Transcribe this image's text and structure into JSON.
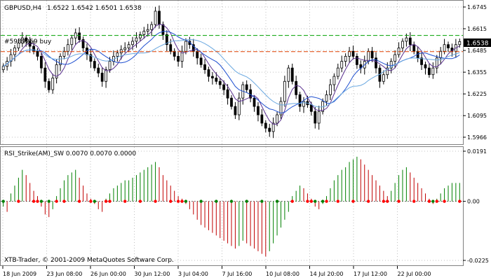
{
  "window": {
    "symbol_label": "GBPUSD,H4",
    "ohlc_label": "1.6522 1.6542 1.6501 1.6538",
    "order_label": "#5989259 buy",
    "current_price": "1.6538",
    "copyright": "XTB-Trader, © 2001-2009 MetaQuotes Software Corp."
  },
  "colors": {
    "background": "#ffffff",
    "candle": "#000000",
    "grid": "#c0c0c0",
    "order_line": "#00a000",
    "stop_line": "#e04000",
    "ma_fast": "#1e4fd0",
    "ma_slow": "#6aa8e0",
    "ma_mid": "#5a3090",
    "hist_pos": "#008000",
    "hist_neg": "#c00000",
    "dot_pos": "#ff0000",
    "dot_neg": "#008000",
    "price_tag_bg": "#000000",
    "price_tag_fg": "#ffffff"
  },
  "chart_data": [
    {
      "type": "candlestick",
      "title": "GBPUSD,H4",
      "ylim": [
        1.5966,
        1.6745
      ],
      "y_ticks": [
        "1.6745",
        "1.6615",
        "1.6485",
        "1.6355",
        "1.6225",
        "1.6095",
        "1.5966"
      ],
      "order_level": 1.6575,
      "stop_level": 1.6478,
      "current_price": 1.6538,
      "close": [
        1.639,
        1.642,
        1.646,
        1.65,
        1.653,
        1.656,
        1.654,
        1.651,
        1.648,
        1.645,
        1.638,
        1.63,
        1.625,
        1.632,
        1.64,
        1.645,
        1.648,
        1.652,
        1.656,
        1.659,
        1.655,
        1.65,
        1.646,
        1.642,
        1.638,
        1.635,
        1.63,
        1.637,
        1.642,
        1.645,
        1.647,
        1.649,
        1.65,
        1.652,
        1.654,
        1.656,
        1.658,
        1.66,
        1.661,
        1.664,
        1.672,
        1.664,
        1.658,
        1.652,
        1.648,
        1.645,
        1.642,
        1.648,
        1.654,
        1.652,
        1.648,
        1.644,
        1.64,
        1.637,
        1.633,
        1.632,
        1.63,
        1.628,
        1.625,
        1.62,
        1.615,
        1.61,
        1.62,
        1.628,
        1.625,
        1.62,
        1.615,
        1.61,
        1.605,
        1.602,
        1.6,
        1.605,
        1.61,
        1.618,
        1.63,
        1.638,
        1.63,
        1.622,
        1.615,
        1.618,
        1.616,
        1.612,
        1.605,
        1.612,
        1.618,
        1.622,
        1.628,
        1.633,
        1.638,
        1.642,
        1.645,
        1.648,
        1.645,
        1.64,
        1.638,
        1.642,
        1.648,
        1.644,
        1.638,
        1.63,
        1.634,
        1.638,
        1.642,
        1.646,
        1.65,
        1.654,
        1.656,
        1.652,
        1.648,
        1.644,
        1.64,
        1.638,
        1.634,
        1.638,
        1.644,
        1.648,
        1.652,
        1.65,
        1.648,
        1.652,
        1.6538
      ]
    },
    {
      "type": "bar",
      "title": "RSI_Strike(AM)_SW 0.0070 0.0070 0.0000",
      "ylim": [
        -0.0225,
        0.0191
      ],
      "y_ticks": [
        "0.0191",
        "0.00",
        "-0.0225"
      ],
      "values": [
        -0.002,
        -0.004,
        0.003,
        0.006,
        0.009,
        0.012,
        0.01,
        0.007,
        0.004,
        0.002,
        -0.002,
        -0.005,
        -0.006,
        -0.003,
        0.002,
        0.005,
        0.008,
        0.01,
        0.011,
        0.012,
        0.009,
        0.006,
        0.003,
        0.001,
        -0.001,
        -0.003,
        -0.004,
        0.001,
        0.003,
        0.005,
        0.006,
        0.007,
        0.008,
        0.008,
        0.009,
        0.01,
        0.011,
        0.012,
        0.013,
        0.014,
        0.015,
        0.013,
        0.01,
        0.008,
        0.006,
        0.004,
        0.002,
        0.001,
        -0.001,
        -0.003,
        -0.005,
        -0.007,
        -0.009,
        -0.01,
        -0.011,
        -0.012,
        -0.013,
        -0.014,
        -0.015,
        -0.016,
        -0.017,
        -0.018,
        -0.017,
        -0.015,
        -0.016,
        -0.017,
        -0.018,
        -0.019,
        -0.02,
        -0.021,
        -0.019,
        -0.016,
        -0.013,
        -0.01,
        -0.007,
        -0.004,
        0.002,
        0.004,
        0.006,
        0.005,
        0.003,
        0.001,
        -0.002,
        -0.003,
        -0.001,
        0.002,
        0.005,
        0.008,
        0.01,
        0.012,
        0.013,
        0.015,
        0.016,
        0.017,
        0.016,
        0.014,
        0.012,
        0.01,
        0.008,
        0.006,
        0.004,
        0.002,
        0.004,
        0.007,
        0.01,
        0.012,
        0.013,
        0.011,
        0.009,
        0.007,
        0.005,
        0.003,
        0.001,
        -0.001,
        0.001,
        0.003,
        0.005,
        0.006,
        0.007,
        0.007,
        0.007
      ]
    }
  ],
  "x_ticks": [
    "18 Jun 2009",
    "23 Jun 08:00",
    "26 Jun 00:00",
    "30 Jun 12:00",
    "3 Jul 04:00",
    "7 Jul 16:00",
    "10 Jul 08:00",
    "14 Jul 20:00",
    "17 Jul 12:00",
    "22 Jul 00:00"
  ]
}
